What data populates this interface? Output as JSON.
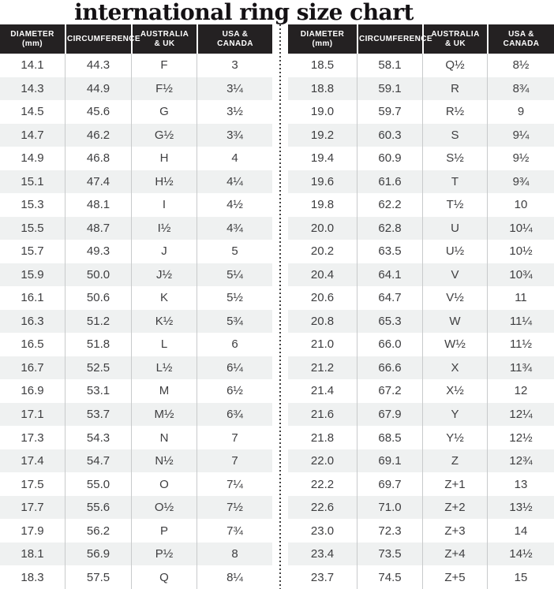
{
  "title": "international ring size chart",
  "colors": {
    "header_bg": "#242122",
    "header_text": "#ffffff",
    "row_bg": "#ffffff",
    "row_alt_bg": "#eff1f1",
    "body_text": "#3e3e40",
    "column_rule": "#c8cacb",
    "divider_dots": "#434343",
    "title_text": "#141114"
  },
  "chart_data": {
    "type": "table",
    "title": "international ring size chart",
    "columns": [
      "DIAMETER\n(mm)",
      "CIRCUMFERENCE",
      "AUSTRALIA\n& UK",
      "USA &\nCANADA"
    ],
    "column_keys": [
      "diameter_mm",
      "circumference",
      "australia_uk",
      "usa_canada"
    ],
    "layout": "two side-by-side tables split by a vertical dotted divider",
    "tables": [
      {
        "position": "left",
        "rows": [
          [
            "14.1",
            "44.3",
            "F",
            "3"
          ],
          [
            "14.3",
            "44.9",
            "F½",
            "3¼"
          ],
          [
            "14.5",
            "45.6",
            "G",
            "3½"
          ],
          [
            "14.7",
            "46.2",
            "G½",
            "3¾"
          ],
          [
            "14.9",
            "46.8",
            "H",
            "4"
          ],
          [
            "15.1",
            "47.4",
            "H½",
            "4¼"
          ],
          [
            "15.3",
            "48.1",
            "I",
            "4½"
          ],
          [
            "15.5",
            "48.7",
            "I½",
            "4¾"
          ],
          [
            "15.7",
            "49.3",
            "J",
            "5"
          ],
          [
            "15.9",
            "50.0",
            "J½",
            "5¼"
          ],
          [
            "16.1",
            "50.6",
            "K",
            "5½"
          ],
          [
            "16.3",
            "51.2",
            "K½",
            "5¾"
          ],
          [
            "16.5",
            "51.8",
            "L",
            "6"
          ],
          [
            "16.7",
            "52.5",
            "L½",
            "6¼"
          ],
          [
            "16.9",
            "53.1",
            "M",
            "6½"
          ],
          [
            "17.1",
            "53.7",
            "M½",
            "6¾"
          ],
          [
            "17.3",
            "54.3",
            "N",
            "7"
          ],
          [
            "17.4",
            "54.7",
            "N½",
            "7"
          ],
          [
            "17.5",
            "55.0",
            "O",
            "7¼"
          ],
          [
            "17.7",
            "55.6",
            "O½",
            "7½"
          ],
          [
            "17.9",
            "56.2",
            "P",
            "7¾"
          ],
          [
            "18.1",
            "56.9",
            "P½",
            "8"
          ],
          [
            "18.3",
            "57.5",
            "Q",
            "8¼"
          ]
        ]
      },
      {
        "position": "right",
        "rows": [
          [
            "18.5",
            "58.1",
            "Q½",
            "8½"
          ],
          [
            "18.8",
            "59.1",
            "R",
            "8¾"
          ],
          [
            "19.0",
            "59.7",
            "R½",
            "9"
          ],
          [
            "19.2",
            "60.3",
            "S",
            "9¼"
          ],
          [
            "19.4",
            "60.9",
            "S½",
            "9½"
          ],
          [
            "19.6",
            "61.6",
            "T",
            "9¾"
          ],
          [
            "19.8",
            "62.2",
            "T½",
            "10"
          ],
          [
            "20.0",
            "62.8",
            "U",
            "10¼"
          ],
          [
            "20.2",
            "63.5",
            "U½",
            "10½"
          ],
          [
            "20.4",
            "64.1",
            "V",
            "10¾"
          ],
          [
            "20.6",
            "64.7",
            "V½",
            "11"
          ],
          [
            "20.8",
            "65.3",
            "W",
            "11¼"
          ],
          [
            "21.0",
            "66.0",
            "W½",
            "11½"
          ],
          [
            "21.2",
            "66.6",
            "X",
            "11¾"
          ],
          [
            "21.4",
            "67.2",
            "X½",
            "12"
          ],
          [
            "21.6",
            "67.9",
            "Y",
            "12¼"
          ],
          [
            "21.8",
            "68.5",
            "Y½",
            "12½"
          ],
          [
            "22.0",
            "69.1",
            "Z",
            "12¾"
          ],
          [
            "22.2",
            "69.7",
            "Z+1",
            "13"
          ],
          [
            "22.6",
            "71.0",
            "Z+2",
            "13½"
          ],
          [
            "23.0",
            "72.3",
            "Z+3",
            "14"
          ],
          [
            "23.4",
            "73.5",
            "Z+4",
            "14½"
          ],
          [
            "23.7",
            "74.5",
            "Z+5",
            "15"
          ]
        ]
      }
    ]
  }
}
